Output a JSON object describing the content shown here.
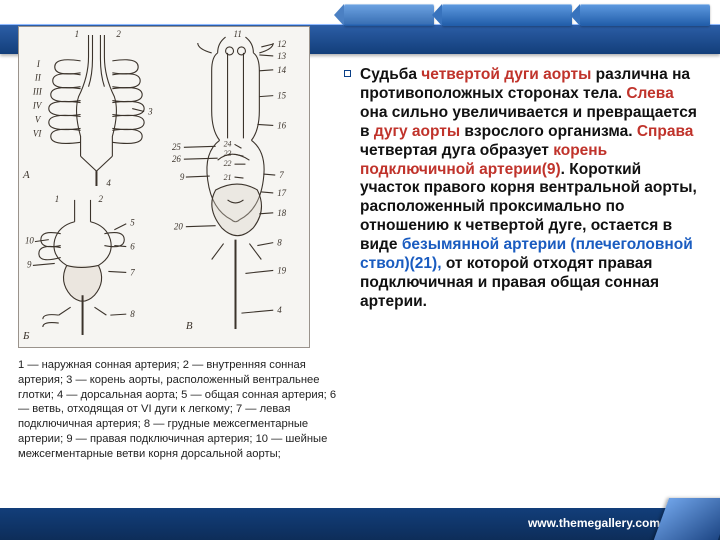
{
  "footer": {
    "url": "www.themegallery.com"
  },
  "caption": "1 — наружная сонная артерия; 2 — внутренняя сонная артерия; 3 — корень аорты, расположенный вентральнее глотки; 4 — дорсальная аорта; 5 — общая сонная артерия; 6 — ветвь, отходящая от VI дуги к легкому; 7 — левая подключичная артерия; 8 — грудные межсегментарные артерии; 9 — правая подключичная артерия; 10 — шейные межсегментарные ветви корня дорсальной аорты;",
  "body": {
    "segments": [
      {
        "t": "Судьба ",
        "c": ""
      },
      {
        "t": "четвертой дуги аорты",
        "c": "hl-red"
      },
      {
        "t": " различна на противоположных сторонах тела. ",
        "c": ""
      },
      {
        "t": "Слева ",
        "c": "hl-red"
      },
      {
        "t": "она сильно увеличивается и превращается в ",
        "c": ""
      },
      {
        "t": "дугу аорты ",
        "c": "hl-red"
      },
      {
        "t": "взрослого организма. ",
        "c": ""
      },
      {
        "t": "Справа ",
        "c": "hl-red"
      },
      {
        "t": "четвертая дуга образует ",
        "c": ""
      },
      {
        "t": "корень подключичной артерии(9)",
        "c": "hl-red"
      },
      {
        "t": ". Короткий участок правого корня вентральной аорты, расположенный проксимально по отношению к четвертой дуге, остается в виде ",
        "c": ""
      },
      {
        "t": "безымянной артерии (плечеголовной ствол)(21), ",
        "c": "hl-blue"
      },
      {
        "t": "от которой отходят правая подключичная и правая общая сонная артерии.",
        "c": ""
      }
    ]
  },
  "figure": {
    "strokeColor": "#3b332b",
    "fillColor": "#f6f5f2",
    "labels_A": [
      "I",
      "II",
      "III",
      "IV",
      "V",
      "VI"
    ],
    "numbers": [
      "1",
      "2",
      "3",
      "4",
      "5",
      "6",
      "7",
      "8",
      "9",
      "10",
      "11",
      "12",
      "13",
      "14",
      "15",
      "16",
      "17",
      "18",
      "19",
      "20",
      "21",
      "22",
      "23",
      "24",
      "25",
      "26"
    ]
  }
}
